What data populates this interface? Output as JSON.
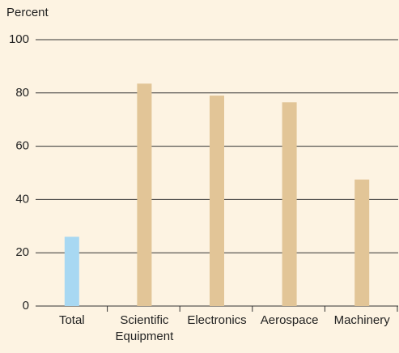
{
  "chart_data": {
    "type": "bar",
    "y_label": "Percent",
    "categories": [
      "Total",
      "Scientific Equipment",
      "Electronics",
      "Aerospace",
      "Machinery"
    ],
    "values": [
      26,
      83.5,
      79,
      76.5,
      47.5
    ],
    "colors": [
      "#a8d8f2",
      "#e2c597",
      "#e2c597",
      "#e2c597",
      "#e2c597"
    ],
    "ylim": [
      0,
      100
    ],
    "yticks": [
      0,
      20,
      40,
      60,
      80,
      100
    ],
    "grid": true
  }
}
